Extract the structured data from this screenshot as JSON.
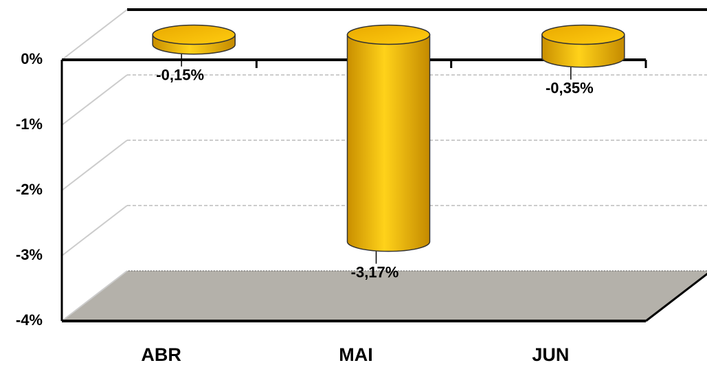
{
  "chart_data": {
    "type": "bar3d",
    "categories": [
      "ABR",
      "MAI",
      "JUN"
    ],
    "values": [
      -0.15,
      -3.17,
      -0.35
    ],
    "value_labels": [
      "-0,15%",
      "-3,17%",
      "-0,35%"
    ],
    "color": "#f5b800",
    "ylim": [
      -4,
      0
    ],
    "yticks": [
      {
        "value": 0,
        "label": "0%"
      },
      {
        "value": -1,
        "label": "-1%"
      },
      {
        "value": -2,
        "label": "-2%"
      },
      {
        "value": -3,
        "label": "-3%"
      },
      {
        "value": -4,
        "label": "-4%"
      }
    ],
    "grid": true
  }
}
